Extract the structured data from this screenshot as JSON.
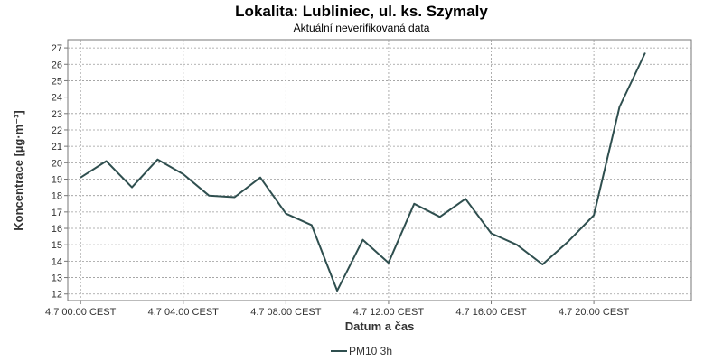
{
  "chart_data": {
    "type": "line",
    "title": "Lokalita: Lubliniec, ul. ks. Szymaly",
    "subtitle": "Aktuální neverifikovaná data",
    "xlabel": "Datum a čas",
    "ylabel": "Koncentrace [µg·m⁻³]",
    "x_hours": [
      0,
      2,
      4,
      6,
      8,
      10,
      12,
      14,
      16,
      18,
      20,
      22,
      24,
      26,
      28,
      30,
      32,
      34,
      36,
      38,
      40,
      42,
      44
    ],
    "x_ticks": [
      {
        "hour": 0,
        "label": "4.7 00:00 CEST"
      },
      {
        "hour": 8,
        "label": "4.7 04:00 CEST"
      },
      {
        "hour": 16,
        "label": "4.7 08:00 CEST"
      },
      {
        "hour": 24,
        "label": "4.7 12:00 CEST"
      },
      {
        "hour": 32,
        "label": "4.7 16:00 CEST"
      },
      {
        "hour": 40,
        "label": "4.7 20:00 CEST"
      }
    ],
    "xlim": [
      -1,
      47.6
    ],
    "ylim": [
      11.6,
      27.5
    ],
    "y_ticks": [
      12,
      13,
      14,
      15,
      16,
      17,
      18,
      19,
      20,
      21,
      22,
      23,
      24,
      25,
      26,
      27
    ],
    "grid": true,
    "legend_position": "bottom-center",
    "series": [
      {
        "name": "PM10 3h",
        "color": "#2f4f4f",
        "values": [
          19.1,
          20.1,
          18.5,
          20.2,
          19.3,
          18.0,
          17.9,
          19.1,
          16.9,
          16.2,
          12.2,
          15.3,
          13.9,
          17.5,
          16.7,
          17.8,
          15.7,
          15.0,
          13.8,
          15.2,
          16.8,
          23.4,
          26.7
        ]
      }
    ]
  }
}
